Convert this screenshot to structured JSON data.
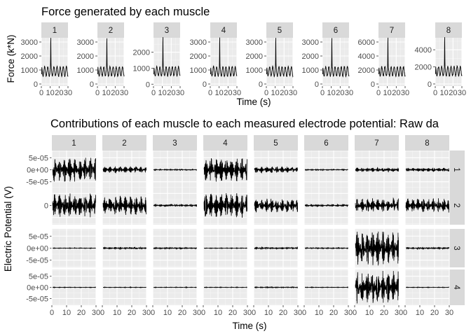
{
  "chart_data": [
    {
      "type": "line",
      "title": "Force generated by each muscle",
      "xlabel": "Time (s)",
      "ylabel": "Force (k*N)",
      "xlim": [
        0,
        30
      ],
      "x_ticks": [
        "0",
        "10",
        "20",
        "30"
      ],
      "panels": [
        {
          "label": "1",
          "ylim": [
            -150,
            3300
          ],
          "y_ticks": [
            0,
            1000,
            2000,
            3000
          ],
          "y_tick_labels": [
            "0",
            "1000",
            "2000",
            "3000"
          ],
          "baseline": 900,
          "amplitude": 330,
          "peak": 3000
        },
        {
          "label": "2",
          "ylim": [
            -150,
            3300
          ],
          "y_ticks": [
            0,
            1000,
            2000,
            3000
          ],
          "y_tick_labels": [
            "0",
            "1000",
            "2000",
            "3000"
          ],
          "baseline": 900,
          "amplitude": 320,
          "peak": 3000
        },
        {
          "label": "3",
          "ylim": [
            -120,
            2900
          ],
          "y_ticks": [
            0,
            1000,
            2000
          ],
          "y_tick_labels": [
            "0",
            "1000",
            "2000"
          ],
          "baseline": 800,
          "amplitude": 280,
          "peak": 2700
        },
        {
          "label": "4",
          "ylim": [
            -150,
            3300
          ],
          "y_ticks": [
            0,
            1000,
            2000,
            3000
          ],
          "y_tick_labels": [
            "0",
            "1000",
            "2000",
            "3000"
          ],
          "baseline": 900,
          "amplitude": 330,
          "peak": 3000
        },
        {
          "label": "5",
          "ylim": [
            -150,
            3300
          ],
          "y_ticks": [
            0,
            1000,
            2000,
            3000
          ],
          "y_tick_labels": [
            "0",
            "1000",
            "2000",
            "3000"
          ],
          "baseline": 900,
          "amplitude": 330,
          "peak": 3000
        },
        {
          "label": "6",
          "ylim": [
            -150,
            3300
          ],
          "y_ticks": [
            0,
            1000,
            2000,
            3000
          ],
          "y_tick_labels": [
            "0",
            "1000",
            "2000",
            "3000"
          ],
          "baseline": 900,
          "amplitude": 330,
          "peak": 3000
        },
        {
          "label": "7",
          "ylim": [
            -300,
            6600
          ],
          "y_ticks": [
            0,
            2000,
            4000,
            6000
          ],
          "y_tick_labels": [
            "0",
            "2000",
            "4000",
            "6000"
          ],
          "baseline": 1800,
          "amplitude": 650,
          "peak": 6000
        },
        {
          "label": "8",
          "ylim": [
            -250,
            5400
          ],
          "y_ticks": [
            0,
            2000,
            4000
          ],
          "y_tick_labels": [
            "0",
            "2000",
            "4000"
          ],
          "baseline": 1500,
          "amplitude": 550,
          "peak": 5000
        }
      ]
    },
    {
      "type": "line",
      "title": "Contributions of each muscle to each measured electrode potential: Raw da",
      "xlabel": "Time (s)",
      "ylabel": "Electric Potential (V)",
      "xlim": [
        0,
        30
      ],
      "x_ticks": [
        "0",
        "10",
        "20",
        "30"
      ],
      "columns": [
        "1",
        "2",
        "3",
        "4",
        "5",
        "6",
        "7",
        "8"
      ],
      "rows": [
        {
          "label": "1",
          "ylim": [
            -8e-05,
            8e-05
          ],
          "y_ticks": [
            5e-05,
            0,
            -5e-05
          ],
          "y_tick_labels": [
            "5e-05",
            "0e+00",
            "-5e-05"
          ],
          "amplitudes": [
            5.2e-05,
            1.4e-05,
            2e-06,
            5.2e-05,
            1.4e-05,
            2e-06,
            9e-06,
            8e-06
          ]
        },
        {
          "label": "2",
          "ylim": [
            -8e-05,
            8e-05
          ],
          "y_ticks": [
            0
          ],
          "y_tick_labels": [
            "0"
          ],
          "amplitudes": [
            5.2e-05,
            4e-05,
            5e-06,
            5.2e-05,
            3e-05,
            5e-06,
            3e-05,
            3e-05
          ]
        },
        {
          "label": "3",
          "ylim": [
            -8e-05,
            8e-05
          ],
          "y_ticks": [
            5e-05,
            0,
            -5e-05
          ],
          "y_tick_labels": [
            "5e-05",
            "0e+00",
            "-5e-05"
          ],
          "amplitudes": [
            1e-06,
            4e-06,
            3e-06,
            1e-06,
            4e-06,
            2e-06,
            7.5e-05,
            4e-06
          ]
        },
        {
          "label": "4",
          "ylim": [
            -8e-05,
            8e-05
          ],
          "y_ticks": [
            5e-05,
            0,
            -5e-05
          ],
          "y_tick_labels": [
            "5e-05",
            "0e+00",
            "-5e-05"
          ],
          "amplitudes": [
            1e-06,
            1e-06,
            1e-06,
            1e-06,
            2e-06,
            1e-06,
            7.5e-05,
            1e-06
          ]
        }
      ]
    }
  ]
}
